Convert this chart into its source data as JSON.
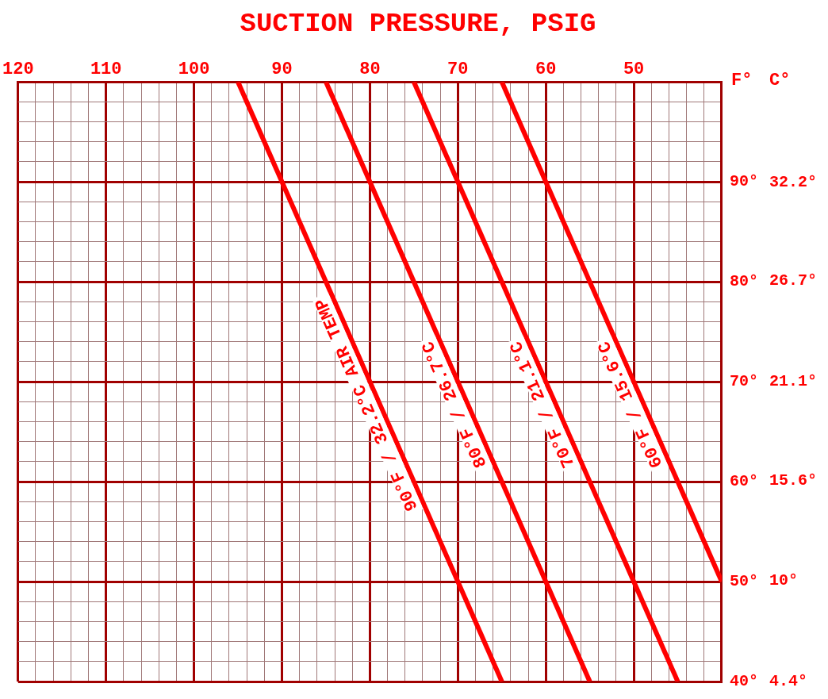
{
  "chart_data": {
    "type": "line",
    "title": "SUCTION PRESSURE, PSIG",
    "ylabel": "F°",
    "y2label": "C°",
    "y2lim": [
      4.4,
      37.8
    ],
    "y2ticks": [
      {
        "value": 4.4,
        "label": "4.4°"
      },
      {
        "value": 10,
        "label": "10°"
      },
      {
        "value": 15.6,
        "label": "15.6°"
      },
      {
        "value": 21.1,
        "label": "21.1°"
      },
      {
        "value": 26.7,
        "label": "26.7°"
      },
      {
        "value": 32.2,
        "label": "32.2°"
      }
    ],
    "xlim": [
      120,
      40
    ],
    "xticks": [
      120,
      {
        "value": 118,
        "label": null
      },
      {
        "value": 116,
        "label": null
      },
      {
        "value": 114,
        "label": null
      },
      {
        "value": 112,
        "label": null
      },
      110,
      {
        "value": 108,
        "label": null
      },
      {
        "value": 106,
        "label": null
      },
      {
        "value": 104,
        "label": null
      },
      {
        "value": 102,
        "label": null
      },
      100,
      {
        "value": 98,
        "label": null
      },
      {
        "value": 96,
        "label": null
      },
      {
        "value": 94,
        "label": null
      },
      {
        "value": 92,
        "label": null
      },
      90,
      {
        "value": 88,
        "label": null
      },
      {
        "value": 86,
        "label": null
      },
      {
        "value": 84,
        "label": null
      },
      {
        "value": 82,
        "label": null
      },
      80,
      {
        "value": 78,
        "label": null
      },
      {
        "value": 76,
        "label": null
      },
      {
        "value": 74,
        "label": null
      },
      {
        "value": 72,
        "label": null
      },
      70,
      {
        "value": 68,
        "label": null
      },
      {
        "value": 66,
        "label": null
      },
      {
        "value": 64,
        "label": null
      },
      {
        "value": 62,
        "label": null
      },
      60,
      {
        "value": 58,
        "label": null
      },
      {
        "value": 56,
        "label": null
      },
      {
        "value": 54,
        "label": null
      },
      {
        "value": 52,
        "label": null
      },
      50,
      {
        "value": 48,
        "label": null
      },
      {
        "value": 46,
        "label": null
      },
      {
        "value": 44,
        "label": null
      },
      {
        "value": 42,
        "label": null
      },
      {
        "value": 40,
        "label": null
      }
    ],
    "ylim": [
      40,
      100
    ],
    "yticks": [
      {
        "value": 40,
        "label": "40°"
      },
      {
        "value": 42,
        "label": null
      },
      {
        "value": 44,
        "label": null
      },
      {
        "value": 46,
        "label": null
      },
      {
        "value": 48,
        "label": null
      },
      {
        "value": 50,
        "label": "50°"
      },
      {
        "value": 52,
        "label": null
      },
      {
        "value": 54,
        "label": null
      },
      {
        "value": 56,
        "label": null
      },
      {
        "value": 58,
        "label": null
      },
      {
        "value": 60,
        "label": "60°"
      },
      {
        "value": 62,
        "label": null
      },
      {
        "value": 64,
        "label": null
      },
      {
        "value": 66,
        "label": null
      },
      {
        "value": 68,
        "label": null
      },
      {
        "value": 70,
        "label": "70°"
      },
      {
        "value": 72,
        "label": null
      },
      {
        "value": 74,
        "label": null
      },
      {
        "value": 76,
        "label": null
      },
      {
        "value": 78,
        "label": null
      },
      {
        "value": 80,
        "label": "80°"
      },
      {
        "value": 82,
        "label": null
      },
      {
        "value": 84,
        "label": null
      },
      {
        "value": 86,
        "label": null
      },
      {
        "value": 88,
        "label": null
      },
      {
        "value": 90,
        "label": "90°"
      },
      {
        "value": 92,
        "label": null
      },
      {
        "value": 94,
        "label": null
      },
      {
        "value": 96,
        "label": null
      },
      {
        "value": 98,
        "label": null
      },
      {
        "value": 100,
        "label": null
      }
    ],
    "grid": true,
    "legend": false,
    "series": [
      {
        "name": "90°F / 32.2°C AIR TEMP",
        "color": "#ff0000",
        "x": [
          95,
          65
        ],
        "values": [
          100,
          40
        ]
      },
      {
        "name": "80°F / 26.7°C",
        "color": "#ff0000",
        "x": [
          85,
          55
        ],
        "values": [
          100,
          40
        ]
      },
      {
        "name": "70°F / 21.1°C",
        "color": "#ff0000",
        "x": [
          75,
          45
        ],
        "values": [
          100,
          40
        ]
      },
      {
        "name": "60°F / 15.6°C",
        "color": "#ff0000",
        "x": [
          65,
          40
        ],
        "values": [
          100,
          50
        ]
      }
    ]
  }
}
